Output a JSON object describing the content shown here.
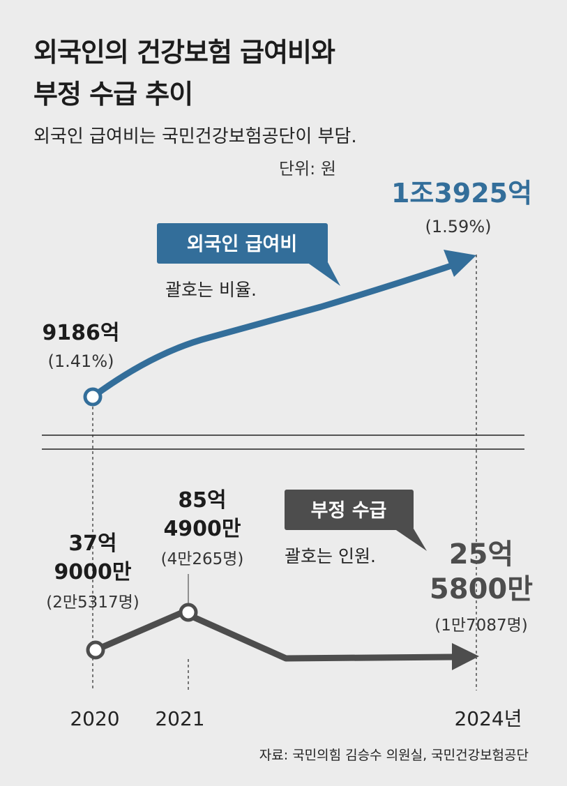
{
  "title_line1": "외국인의 건강보험 급여비와",
  "title_line2": "부정 수급 추이",
  "unit": "단위: 원",
  "subtitle": "외국인 급여비는 국민건강보험공단이 부담.",
  "source": "자료: 국민의힘 김승수 의원실, 국민건강보험공단",
  "colors": {
    "benefit": "#336e9a",
    "fraud": "#4d4d4d",
    "background": "#ececec"
  },
  "chart_data": [
    {
      "type": "line",
      "series_label": "외국인 급여비",
      "series_note": "괄호는 비율.",
      "x": [
        "2020",
        "2024"
      ],
      "values_text": [
        "9186억",
        "1조3925억"
      ],
      "values_krw_100m": [
        9186,
        13925
      ],
      "ratios_text": [
        "(1.41%)",
        "(1.59%)"
      ],
      "ratios_pct": [
        1.41,
        1.59
      ]
    },
    {
      "type": "line",
      "series_label": "부정 수급",
      "series_note": "괄호는 인원.",
      "x": [
        "2020",
        "2021",
        "2024"
      ],
      "values_line1": [
        "37억",
        "85억",
        "25억"
      ],
      "values_line2": [
        "9000만",
        "4900만",
        "5800만"
      ],
      "values_krw_10k": [
        379000,
        854900,
        255800
      ],
      "persons_text": [
        "(2만5317명)",
        "(4만265명)",
        "(1만7087명)"
      ],
      "persons": [
        25317,
        40265,
        17087
      ]
    }
  ],
  "x_axis_labels": [
    "2020",
    "2021",
    "2024년"
  ]
}
